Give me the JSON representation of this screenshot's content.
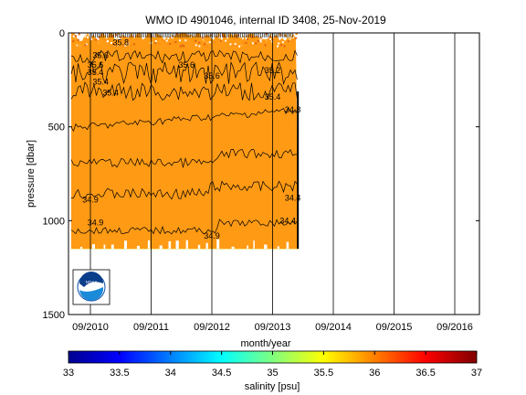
{
  "chart_data": {
    "type": "heatmap",
    "title": "WMO ID 4901046, internal ID 3408, 25-Nov-2019",
    "xlabel": "month/year",
    "ylabel": "pressure [dbar]",
    "x_ticks": [
      "09/2010",
      "09/2011",
      "09/2012",
      "09/2013",
      "09/2014",
      "09/2015",
      "09/2016"
    ],
    "y_ticks": [
      0,
      500,
      1000,
      1500
    ],
    "ylim": [
      1500,
      0
    ],
    "y_axis_inverted": true,
    "grid": "vertical lines at each September",
    "colorbar": {
      "label": "salinity [psu]",
      "ticks": [
        33,
        33.5,
        34,
        34.5,
        35,
        35.5,
        36,
        36.5,
        37
      ],
      "range": [
        33,
        37
      ],
      "colormap": "jet"
    },
    "data_start": "2010-09",
    "data_end": "2014-01",
    "profile_max_pressure_dbar": 1150,
    "contour_labels": [
      {
        "text": "35.6",
        "date": "2010-11",
        "pressure": 120
      },
      {
        "text": "35.8",
        "date": "2011-03",
        "pressure": 50
      },
      {
        "text": "35.6",
        "date": "2010-10",
        "pressure": 170
      },
      {
        "text": "35.4",
        "date": "2010-10",
        "pressure": 210
      },
      {
        "text": "35.4",
        "date": "2010-11",
        "pressure": 260
      },
      {
        "text": "35.4",
        "date": "2011-01",
        "pressure": 320
      },
      {
        "text": "35.6",
        "date": "2012-04",
        "pressure": 170
      },
      {
        "text": "35.6",
        "date": "2012-09",
        "pressure": 230
      },
      {
        "text": "35.2",
        "date": "2013-09",
        "pressure": 200
      },
      {
        "text": "35.4",
        "date": "2013-09",
        "pressure": 340
      },
      {
        "text": "34.8",
        "date": "2014-01",
        "pressure": 410
      },
      {
        "text": "34.4",
        "date": "2014-01",
        "pressure": 880
      },
      {
        "text": "34.9",
        "date": "2010-09",
        "pressure": 890
      },
      {
        "text": "34.9",
        "date": "2010-10",
        "pressure": 1010
      },
      {
        "text": "34.9",
        "date": "2012-09",
        "pressure": 1080
      },
      {
        "text": "34.4",
        "date": "2013-12",
        "pressure": 1000
      }
    ],
    "logo": "NOAA"
  }
}
